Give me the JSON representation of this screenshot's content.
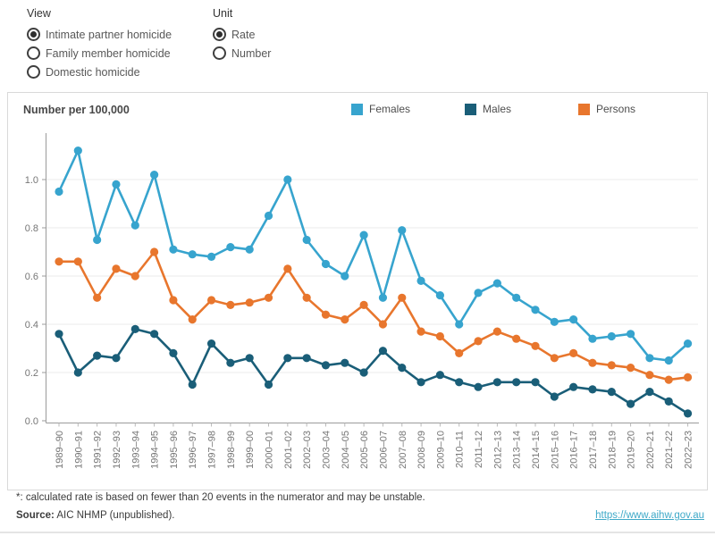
{
  "controls": {
    "view": {
      "label": "View",
      "options": [
        {
          "label": "Intimate partner homicide",
          "selected": true
        },
        {
          "label": "Family member homicide",
          "selected": false
        },
        {
          "label": "Domestic homicide",
          "selected": false
        }
      ]
    },
    "unit": {
      "label": "Unit",
      "options": [
        {
          "label": "Rate",
          "selected": true
        },
        {
          "label": "Number",
          "selected": false
        }
      ]
    }
  },
  "chart": {
    "title": "Number per 100,000"
  },
  "chart_data": {
    "type": "line",
    "title": "Number per 100,000",
    "categories": [
      "1989–90",
      "1990–91",
      "1991–92",
      "1992–93",
      "1993–94",
      "1994–95",
      "1995–96",
      "1996–97",
      "1997–98",
      "1998–99",
      "1999–00",
      "2000–01",
      "2001–02",
      "2002–03",
      "2003–04",
      "2004–05",
      "2005–06",
      "2006–07",
      "2007–08",
      "2008–09",
      "2009–10",
      "2010–11",
      "2011–12",
      "2012–13",
      "2013–14",
      "2014–15",
      "2015–16",
      "2016–17",
      "2017–18",
      "2018–19",
      "2019–20",
      "2020–21",
      "2021–22",
      "2022–23"
    ],
    "series": [
      {
        "name": "Females",
        "color": "#37A4CE",
        "values": [
          0.95,
          1.12,
          0.75,
          0.98,
          0.81,
          1.02,
          0.71,
          0.69,
          0.68,
          0.72,
          0.71,
          0.85,
          1.0,
          0.75,
          0.65,
          0.6,
          0.77,
          0.51,
          0.79,
          0.58,
          0.52,
          0.4,
          0.53,
          0.57,
          0.51,
          0.46,
          0.41,
          0.42,
          0.34,
          0.35,
          0.36,
          0.26,
          0.25,
          0.32
        ]
      },
      {
        "name": "Males",
        "color": "#1A5E78",
        "values": [
          0.36,
          0.2,
          0.27,
          0.26,
          0.38,
          0.36,
          0.28,
          0.15,
          0.32,
          0.24,
          0.26,
          0.15,
          0.26,
          0.26,
          0.23,
          0.24,
          0.2,
          0.29,
          0.22,
          0.16,
          0.19,
          0.16,
          0.14,
          0.16,
          0.16,
          0.16,
          0.1,
          0.14,
          0.13,
          0.12,
          0.07,
          0.12,
          0.08,
          0.03
        ]
      },
      {
        "name": "Persons",
        "color": "#E8762D",
        "values": [
          0.66,
          0.66,
          0.51,
          0.63,
          0.6,
          0.7,
          0.5,
          0.42,
          0.5,
          0.48,
          0.49,
          0.51,
          0.63,
          0.51,
          0.44,
          0.42,
          0.48,
          0.4,
          0.51,
          0.37,
          0.35,
          0.28,
          0.33,
          0.37,
          0.34,
          0.31,
          0.26,
          0.28,
          0.24,
          0.23,
          0.22,
          0.19,
          0.17,
          0.18
        ]
      }
    ],
    "xlabel": "",
    "ylabel": "Number per 100,000",
    "ylim": [
      0.0,
      1.2
    ],
    "yticks": [
      0.0,
      0.2,
      0.4,
      0.6,
      0.8,
      1.0
    ],
    "grid": true,
    "legend_position": "top-right"
  },
  "footer": {
    "footnote": "*: calculated rate is based on fewer than 20 events in the numerator and may be unstable.",
    "source_label": "Source:",
    "source_text": " AIC NHMP (unpublished).",
    "link": "https://www.aihw.gov.au",
    "link_color": "#3FA9C8"
  }
}
